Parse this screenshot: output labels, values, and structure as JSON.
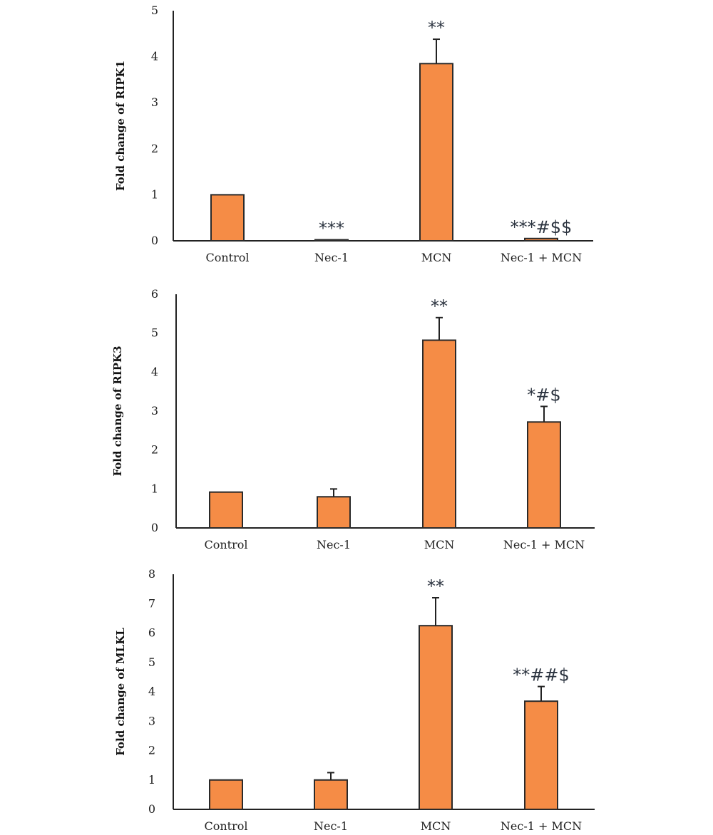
{
  "chart_data": [
    {
      "type": "bar",
      "ylabel": "Fold change of RIPK1",
      "categories": [
        "Control",
        "Nec-1",
        "MCN",
        "Nec-1 + MCN"
      ],
      "values": [
        1.0,
        0.02,
        3.85,
        0.05
      ],
      "errors": [
        0,
        0,
        0.53,
        0
      ],
      "annotations": [
        "",
        "***",
        "**",
        "***#$$"
      ],
      "ylim": [
        0,
        5
      ],
      "yticks": [
        0,
        1,
        2,
        3,
        4,
        5
      ],
      "bar_color": "#f58c46",
      "grid": false
    },
    {
      "type": "bar",
      "ylabel": "Fold change of RIPK3",
      "categories": [
        "Control",
        "Nec-1",
        "MCN",
        "Nec-1 + MCN"
      ],
      "values": [
        0.92,
        0.8,
        4.82,
        2.72
      ],
      "errors": [
        0,
        0.2,
        0.58,
        0.4
      ],
      "annotations": [
        "",
        "",
        "**",
        "*#$"
      ],
      "ylim": [
        0,
        6
      ],
      "yticks": [
        0,
        1,
        2,
        3,
        4,
        5,
        6
      ],
      "bar_color": "#f58c46",
      "grid": false
    },
    {
      "type": "bar",
      "ylabel": "Fold change of MLKL",
      "categories": [
        "Control",
        "Nec-1",
        "MCN",
        "Nec-1 + MCN"
      ],
      "values": [
        1.0,
        1.0,
        6.25,
        3.68
      ],
      "errors": [
        0,
        0.25,
        0.95,
        0.5
      ],
      "annotations": [
        "",
        "",
        "**",
        "**##$"
      ],
      "ylim": [
        0,
        8
      ],
      "yticks": [
        0,
        1,
        2,
        3,
        4,
        5,
        6,
        7,
        8
      ],
      "bar_color": "#f58c46",
      "grid": false
    }
  ]
}
